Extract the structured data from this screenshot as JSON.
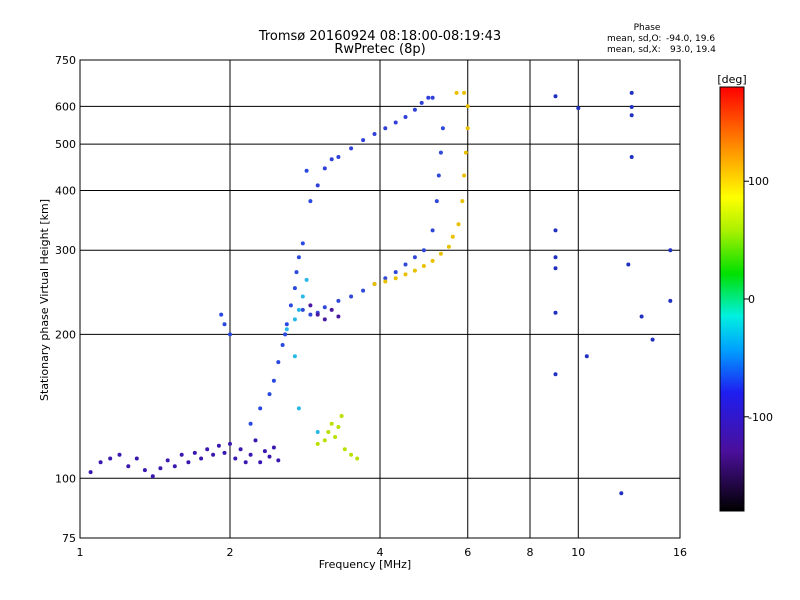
{
  "chart_data": {
    "type": "scatter",
    "title": "Tromsø 20160924 08:18:00-08:19:43",
    "subtitle": "RwPretec (8p)",
    "xlabel": "Frequency [MHz]",
    "ylabel": "Stationary phase Virtual Height [km]",
    "xscale": "log",
    "yscale": "log",
    "xlim": [
      1,
      16
    ],
    "ylim": [
      75,
      750
    ],
    "xticks": [
      1,
      2,
      4,
      6,
      8,
      10,
      16
    ],
    "yticks": [
      75,
      100,
      200,
      300,
      400,
      500,
      600,
      750
    ],
    "grid": true,
    "phase_stats": {
      "heading": "Phase",
      "o_label": "mean, sd,O:",
      "o_values": "-94.0, 19.6",
      "x_label": "mean, sd,X:",
      "x_values": "93.0, 19.4"
    },
    "colorbar": {
      "label": "[deg]",
      "range": [
        -180,
        180
      ],
      "ticks": [
        100,
        0,
        -100
      ],
      "placement": "right"
    },
    "series": [
      {
        "name": "low-height trace (~100-125 km)",
        "color": "#3a18b0",
        "points": [
          [
            1.05,
            103
          ],
          [
            1.1,
            108
          ],
          [
            1.15,
            110
          ],
          [
            1.2,
            112
          ],
          [
            1.25,
            106
          ],
          [
            1.3,
            110
          ],
          [
            1.35,
            104
          ],
          [
            1.4,
            101
          ],
          [
            1.45,
            105
          ],
          [
            1.5,
            109
          ],
          [
            1.55,
            106
          ],
          [
            1.6,
            112
          ],
          [
            1.65,
            108
          ],
          [
            1.7,
            113
          ],
          [
            1.75,
            110
          ],
          [
            1.8,
            115
          ],
          [
            1.85,
            112
          ],
          [
            1.9,
            117
          ],
          [
            1.95,
            113
          ],
          [
            2.0,
            118
          ],
          [
            2.05,
            110
          ],
          [
            2.1,
            115
          ],
          [
            2.15,
            108
          ],
          [
            2.2,
            112
          ],
          [
            2.25,
            120
          ],
          [
            2.3,
            108
          ],
          [
            2.35,
            114
          ],
          [
            2.4,
            111
          ],
          [
            2.45,
            116
          ],
          [
            2.5,
            109
          ]
        ]
      },
      {
        "name": "rising trace 2-2.8 MHz",
        "color": "#2848e0",
        "points": [
          [
            1.92,
            220
          ],
          [
            1.95,
            210
          ],
          [
            2.0,
            200
          ],
          [
            2.2,
            130
          ],
          [
            2.3,
            140
          ],
          [
            2.4,
            150
          ],
          [
            2.45,
            160
          ],
          [
            2.5,
            175
          ],
          [
            2.55,
            190
          ],
          [
            2.58,
            200
          ],
          [
            2.6,
            210
          ],
          [
            2.65,
            230
          ],
          [
            2.7,
            250
          ],
          [
            2.72,
            270
          ],
          [
            2.75,
            290
          ],
          [
            2.8,
            310
          ],
          [
            2.85,
            440
          ],
          [
            2.9,
            380
          ]
        ]
      },
      {
        "name": "O-mode upper trace",
        "color": "#2f3fd8",
        "points": [
          [
            3.0,
            410
          ],
          [
            3.1,
            445
          ],
          [
            3.2,
            465
          ],
          [
            3.3,
            470
          ],
          [
            3.5,
            490
          ],
          [
            3.7,
            510
          ],
          [
            3.9,
            525
          ],
          [
            4.1,
            540
          ],
          [
            4.3,
            555
          ],
          [
            4.5,
            570
          ],
          [
            4.7,
            590
          ],
          [
            4.85,
            610
          ],
          [
            5.0,
            625
          ],
          [
            5.1,
            625
          ]
        ]
      },
      {
        "name": "O-mode lower trace",
        "color": "#2f48d8",
        "points": [
          [
            2.8,
            225
          ],
          [
            2.9,
            220
          ],
          [
            3.0,
            222
          ],
          [
            3.1,
            228
          ],
          [
            3.3,
            235
          ],
          [
            3.5,
            240
          ],
          [
            3.7,
            247
          ],
          [
            3.9,
            255
          ],
          [
            4.1,
            262
          ],
          [
            4.3,
            270
          ],
          [
            4.5,
            280
          ],
          [
            4.7,
            290
          ],
          [
            4.9,
            300
          ],
          [
            5.1,
            330
          ],
          [
            5.2,
            380
          ],
          [
            5.25,
            430
          ],
          [
            5.3,
            480
          ],
          [
            5.35,
            540
          ]
        ]
      },
      {
        "name": "violet cluster",
        "color": "#4a1aa0",
        "points": [
          [
            2.9,
            230
          ],
          [
            3.0,
            220
          ],
          [
            3.1,
            215
          ],
          [
            3.2,
            225
          ],
          [
            3.3,
            218
          ]
        ]
      },
      {
        "name": "X-mode trace",
        "color": "#e8c000",
        "points": [
          [
            3.9,
            255
          ],
          [
            4.1,
            258
          ],
          [
            4.3,
            262
          ],
          [
            4.5,
            267
          ],
          [
            4.7,
            272
          ],
          [
            4.9,
            278
          ],
          [
            5.1,
            285
          ],
          [
            5.3,
            295
          ],
          [
            5.5,
            305
          ],
          [
            5.6,
            320
          ],
          [
            5.75,
            340
          ],
          [
            5.85,
            380
          ],
          [
            5.9,
            430
          ],
          [
            5.95,
            480
          ],
          [
            6.0,
            540
          ],
          [
            6.0,
            600
          ],
          [
            5.9,
            640
          ],
          [
            5.7,
            640
          ]
        ]
      },
      {
        "name": "yellow-green cluster",
        "color": "#b8e000",
        "points": [
          [
            3.0,
            118
          ],
          [
            3.1,
            120
          ],
          [
            3.15,
            125
          ],
          [
            3.2,
            130
          ],
          [
            3.25,
            122
          ],
          [
            3.3,
            128
          ],
          [
            3.35,
            135
          ],
          [
            3.4,
            115
          ],
          [
            3.5,
            112
          ],
          [
            3.6,
            110
          ]
        ]
      },
      {
        "name": "cyan points",
        "color": "#28b8e8",
        "points": [
          [
            2.6,
            205
          ],
          [
            2.7,
            215
          ],
          [
            2.75,
            225
          ],
          [
            2.8,
            240
          ],
          [
            2.85,
            260
          ],
          [
            2.7,
            180
          ],
          [
            2.75,
            140
          ],
          [
            3.0,
            125
          ]
        ]
      },
      {
        "name": "scattered echoes",
        "color": "#2030c0",
        "points": [
          [
            9.0,
            630
          ],
          [
            9.0,
            330
          ],
          [
            9.0,
            290
          ],
          [
            9.0,
            275
          ],
          [
            9.0,
            222
          ],
          [
            9.0,
            165
          ],
          [
            10.0,
            595
          ],
          [
            10.4,
            180
          ],
          [
            12.2,
            93
          ],
          [
            12.8,
            640
          ],
          [
            12.8,
            598
          ],
          [
            12.8,
            470
          ],
          [
            12.6,
            280
          ],
          [
            13.4,
            218
          ],
          [
            15.3,
            300
          ],
          [
            15.3,
            235
          ],
          [
            14.1,
            195
          ],
          [
            12.8,
            575
          ]
        ]
      }
    ]
  }
}
